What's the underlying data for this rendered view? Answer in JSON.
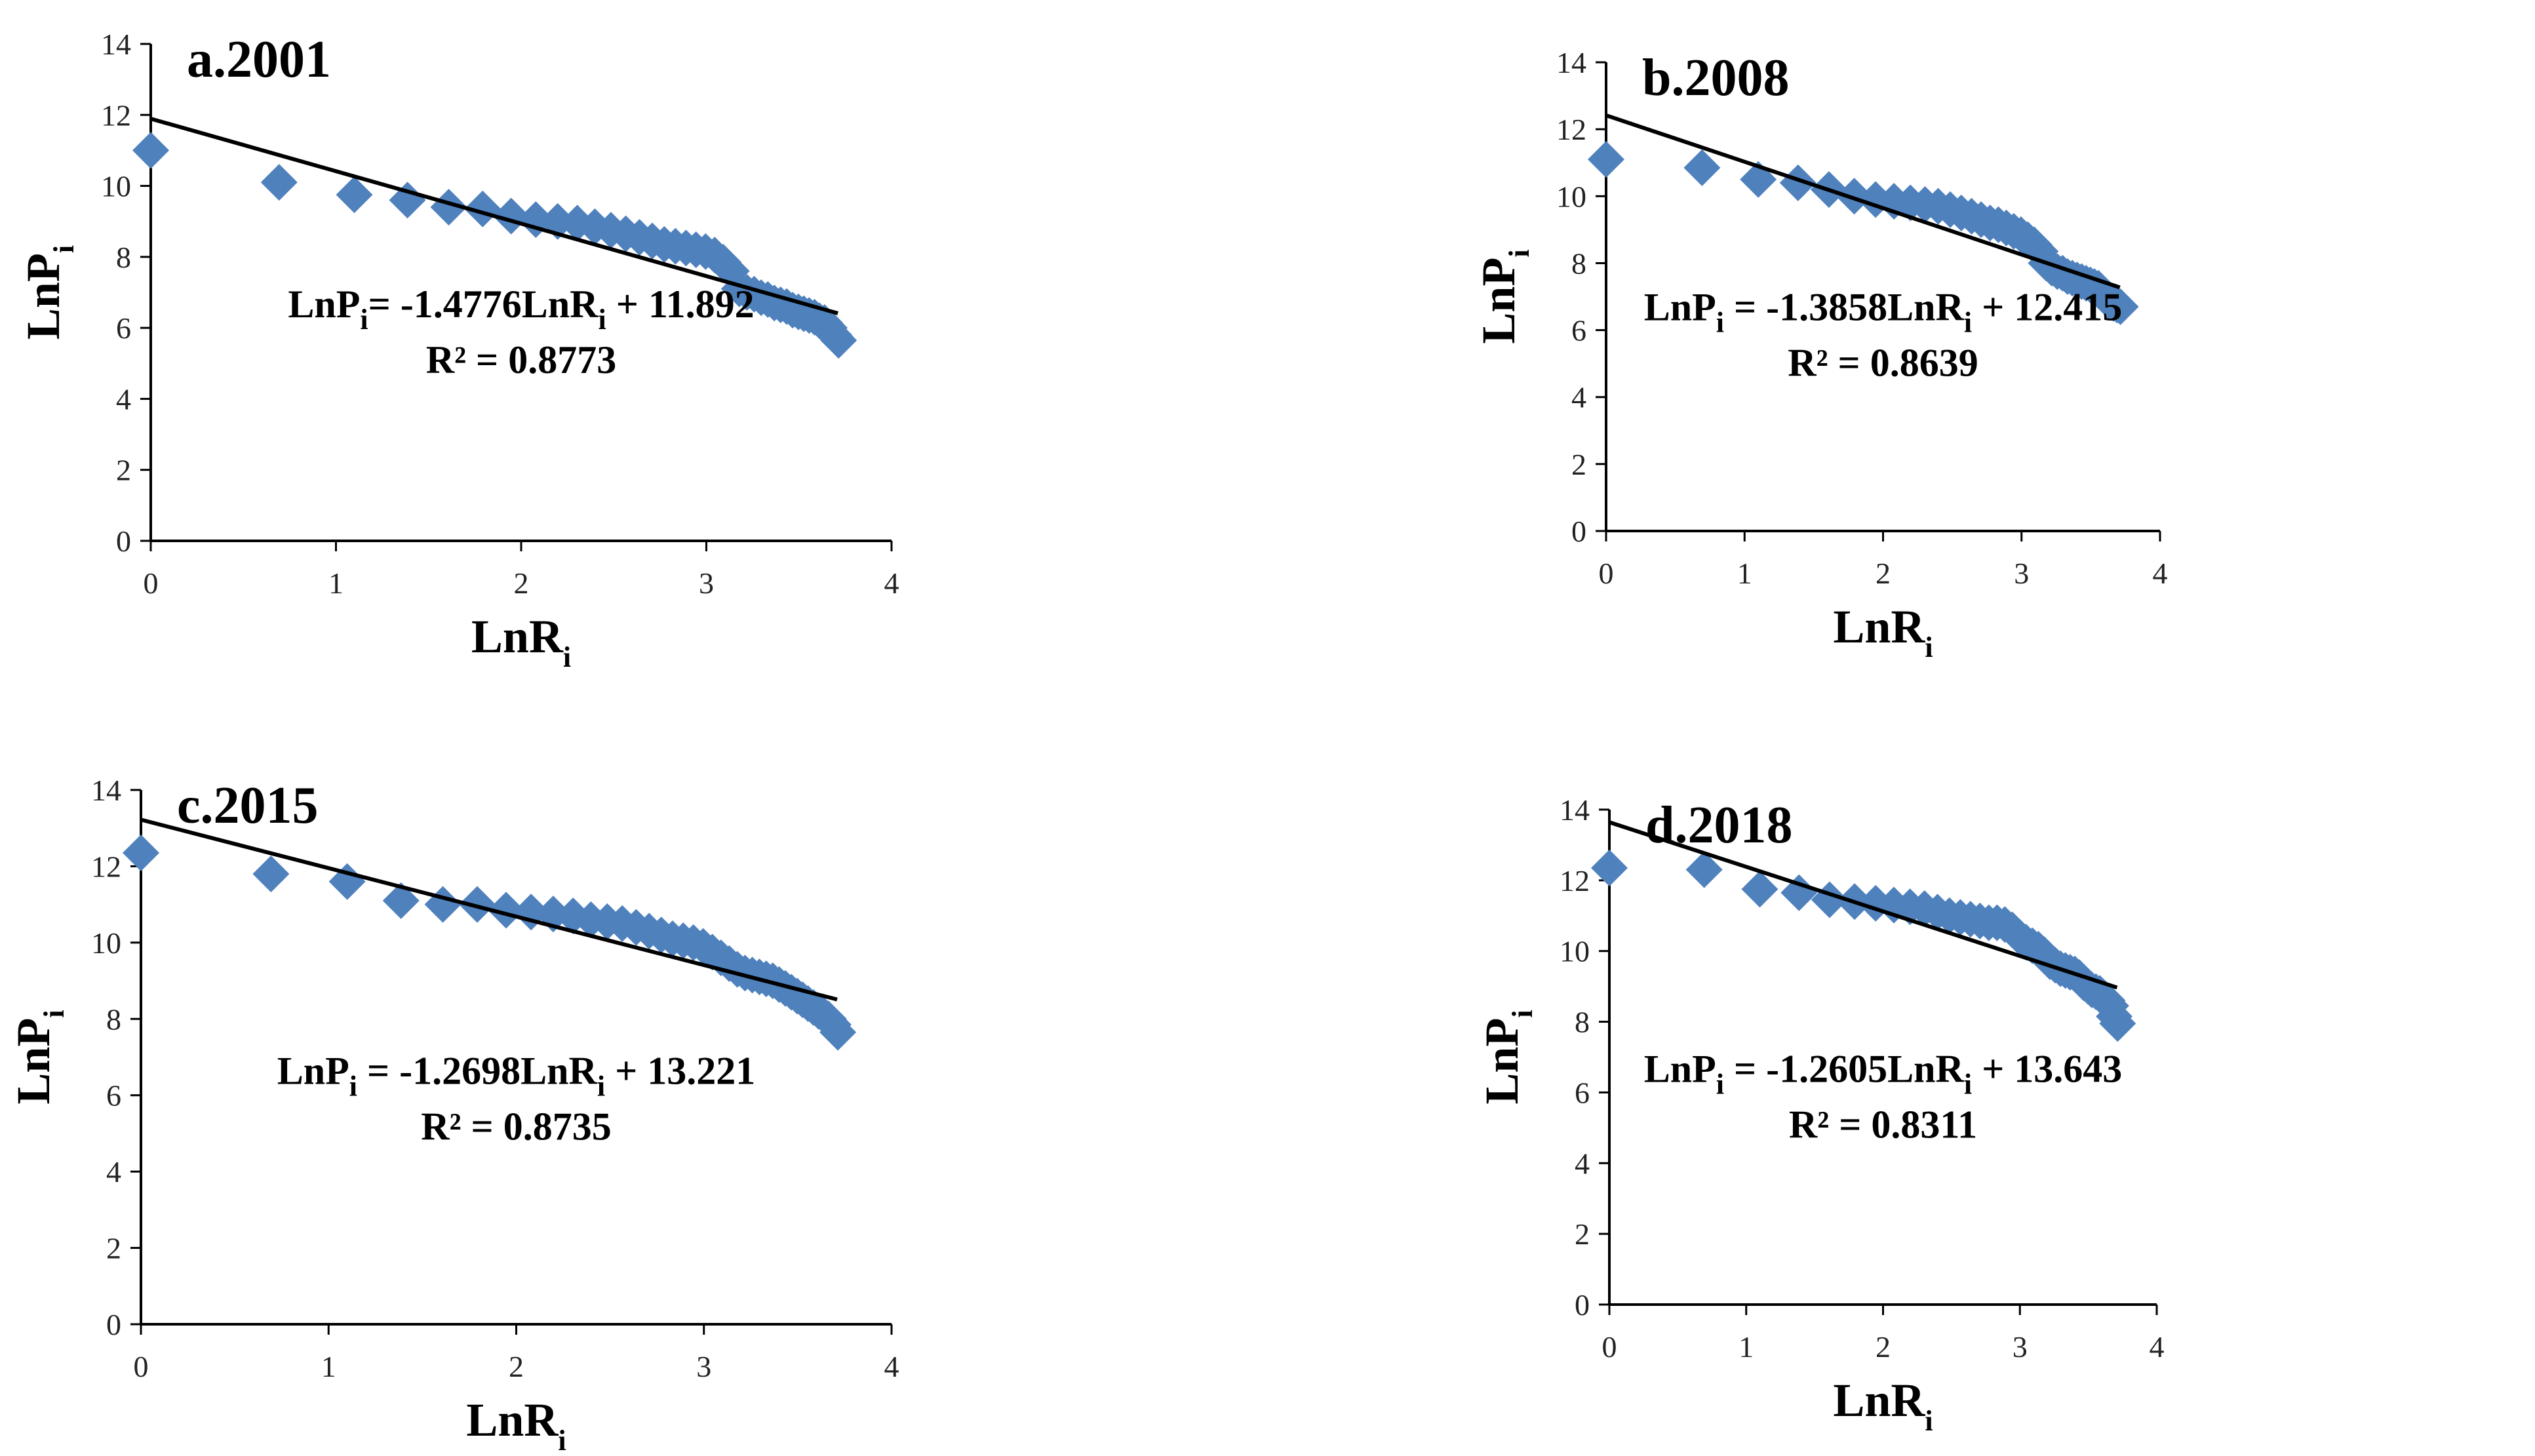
{
  "colors": {
    "marker": "#4F81BD",
    "axis": "#000000",
    "trend": "#000000"
  },
  "chart_data": [
    {
      "type": "scatter",
      "title": "a.2001",
      "xlabel_main": "LnR",
      "xlabel_sub": "i",
      "ylabel_main": "LnP",
      "ylabel_sub": "i",
      "xlim": [
        0,
        4
      ],
      "ylim": [
        0,
        14
      ],
      "xticks": [
        "0",
        "1",
        "2",
        "3",
        "4"
      ],
      "yticks": [
        "0",
        "2",
        "4",
        "6",
        "8",
        "10",
        "12",
        "14"
      ],
      "trendline": {
        "slope": -1.4776,
        "intercept": 11.892,
        "x_range": [
          0,
          3.71
        ]
      },
      "equation": {
        "lhs": "LnP",
        "sub": "i",
        "mid": "= -1.4776LnR",
        "sub2": "i",
        "rhs": " + 11.892"
      },
      "r2": "R² = 0.8773",
      "x": [
        0,
        0.693,
        1.099,
        1.386,
        1.609,
        1.792,
        1.946,
        2.079,
        2.197,
        2.303,
        2.398,
        2.485,
        2.565,
        2.639,
        2.708,
        2.773,
        2.833,
        2.89,
        2.944,
        2.996,
        3.045,
        3.091,
        3.135,
        3.178,
        3.219,
        3.258,
        3.296,
        3.332,
        3.367,
        3.401,
        3.434,
        3.466,
        3.497,
        3.526,
        3.555,
        3.584,
        3.611,
        3.638,
        3.664,
        3.689,
        3.714
      ],
      "y": [
        11.0,
        10.1,
        9.75,
        9.6,
        9.4,
        9.35,
        9.15,
        9.05,
        9.0,
        8.95,
        8.85,
        8.75,
        8.65,
        8.55,
        8.45,
        8.35,
        8.3,
        8.25,
        8.2,
        8.15,
        8.05,
        7.85,
        7.6,
        7.1,
        7.0,
        6.95,
        6.85,
        6.8,
        6.7,
        6.65,
        6.6,
        6.5,
        6.45,
        6.4,
        6.35,
        6.3,
        6.2,
        6.15,
        6.0,
        5.8,
        5.65
      ]
    },
    {
      "type": "scatter",
      "title": "b.2008",
      "xlabel_main": "LnR",
      "xlabel_sub": "i",
      "ylabel_main": "LnP",
      "ylabel_sub": "i",
      "xlim": [
        0,
        4
      ],
      "ylim": [
        0,
        14
      ],
      "xticks": [
        "0",
        "1",
        "2",
        "3",
        "4"
      ],
      "yticks": [
        "0",
        "2",
        "4",
        "6",
        "8",
        "10",
        "12",
        "14"
      ],
      "trendline": {
        "slope": -1.3858,
        "intercept": 12.415,
        "x_range": [
          0,
          3.71
        ]
      },
      "equation": {
        "lhs": "LnP",
        "sub": "i",
        "mid": " = -1.3858LnR",
        "sub2": "i",
        "rhs": " + 12.415"
      },
      "r2": "R² = 0.8639",
      "x": [
        0,
        0.693,
        1.099,
        1.386,
        1.609,
        1.792,
        1.946,
        2.079,
        2.197,
        2.303,
        2.398,
        2.485,
        2.565,
        2.639,
        2.708,
        2.773,
        2.833,
        2.89,
        2.944,
        2.996,
        3.045,
        3.091,
        3.135,
        3.178,
        3.219,
        3.258,
        3.296,
        3.332,
        3.367,
        3.401,
        3.434,
        3.466,
        3.497,
        3.526,
        3.555,
        3.584,
        3.611,
        3.638,
        3.664,
        3.689,
        3.714
      ],
      "y": [
        11.1,
        10.85,
        10.5,
        10.4,
        10.2,
        10.0,
        9.9,
        9.85,
        9.8,
        9.75,
        9.7,
        9.6,
        9.5,
        9.4,
        9.3,
        9.2,
        9.15,
        9.05,
        8.95,
        8.85,
        8.7,
        8.55,
        8.35,
        8.0,
        7.85,
        7.75,
        7.7,
        7.6,
        7.55,
        7.5,
        7.45,
        7.4,
        7.35,
        7.3,
        7.25,
        7.1,
        6.95,
        6.85,
        6.8,
        6.75,
        6.7
      ]
    },
    {
      "type": "scatter",
      "title": "c.2015",
      "xlabel_main": "LnR",
      "xlabel_sub": "i",
      "ylabel_main": "LnP",
      "ylabel_sub": "i",
      "xlim": [
        0,
        4
      ],
      "ylim": [
        0,
        14
      ],
      "xticks": [
        "0",
        "1",
        "2",
        "3",
        "4"
      ],
      "yticks": [
        "0",
        "2",
        "4",
        "6",
        "8",
        "10",
        "12",
        "14"
      ],
      "trendline": {
        "slope": -1.2698,
        "intercept": 13.221,
        "x_range": [
          0,
          3.71
        ]
      },
      "equation": {
        "lhs": "LnP",
        "sub": "i",
        "mid": " = -1.2698LnR",
        "sub2": "i",
        "rhs": " + 13.221"
      },
      "r2": "R² = 0.8735",
      "x": [
        0,
        0.693,
        1.099,
        1.386,
        1.609,
        1.792,
        1.946,
        2.079,
        2.197,
        2.303,
        2.398,
        2.485,
        2.565,
        2.639,
        2.708,
        2.773,
        2.833,
        2.89,
        2.944,
        2.996,
        3.045,
        3.091,
        3.135,
        3.178,
        3.219,
        3.258,
        3.296,
        3.332,
        3.367,
        3.401,
        3.434,
        3.466,
        3.497,
        3.526,
        3.555,
        3.584,
        3.611,
        3.638,
        3.664,
        3.689,
        3.714
      ],
      "y": [
        12.35,
        11.8,
        11.6,
        11.1,
        11.0,
        11.0,
        10.85,
        10.8,
        10.75,
        10.7,
        10.6,
        10.55,
        10.5,
        10.4,
        10.3,
        10.2,
        10.1,
        10.05,
        10.0,
        9.9,
        9.75,
        9.6,
        9.45,
        9.3,
        9.2,
        9.15,
        9.1,
        9.05,
        9.0,
        8.9,
        8.8,
        8.7,
        8.6,
        8.5,
        8.4,
        8.3,
        8.2,
        8.1,
        8.0,
        7.85,
        7.65
      ]
    },
    {
      "type": "scatter",
      "title": "d.2018",
      "xlabel_main": "LnR",
      "xlabel_sub": "i",
      "ylabel_main": "LnP",
      "ylabel_sub": "i",
      "xlim": [
        0,
        4
      ],
      "ylim": [
        0,
        14
      ],
      "xticks": [
        "0",
        "1",
        "2",
        "3",
        "4"
      ],
      "yticks": [
        "0",
        "2",
        "4",
        "6",
        "8",
        "10",
        "12",
        "14"
      ],
      "trendline": {
        "slope": -1.2605,
        "intercept": 13.643,
        "x_range": [
          0,
          3.71
        ]
      },
      "equation": {
        "lhs": "LnP",
        "sub": "i",
        "mid": " = -1.2605LnR",
        "sub2": "i",
        "rhs": " + 13.643"
      },
      "r2": "R² = 0.8311",
      "x": [
        0,
        0.693,
        1.099,
        1.386,
        1.609,
        1.792,
        1.946,
        2.079,
        2.197,
        2.303,
        2.398,
        2.485,
        2.565,
        2.639,
        2.708,
        2.773,
        2.833,
        2.89,
        2.944,
        2.996,
        3.045,
        3.091,
        3.135,
        3.178,
        3.219,
        3.258,
        3.296,
        3.332,
        3.367,
        3.401,
        3.434,
        3.466,
        3.497,
        3.526,
        3.555,
        3.584,
        3.611,
        3.638,
        3.664,
        3.689,
        3.714
      ],
      "y": [
        12.35,
        12.3,
        11.75,
        11.65,
        11.45,
        11.4,
        11.35,
        11.3,
        11.25,
        11.2,
        11.1,
        11.0,
        10.95,
        10.9,
        10.85,
        10.8,
        10.8,
        10.75,
        10.6,
        10.4,
        10.25,
        10.15,
        10.05,
        9.9,
        9.7,
        9.6,
        9.5,
        9.45,
        9.4,
        9.35,
        9.25,
        9.1,
        9.0,
        8.9,
        8.85,
        8.8,
        8.7,
        8.6,
        8.45,
        8.15,
        7.95
      ]
    }
  ]
}
